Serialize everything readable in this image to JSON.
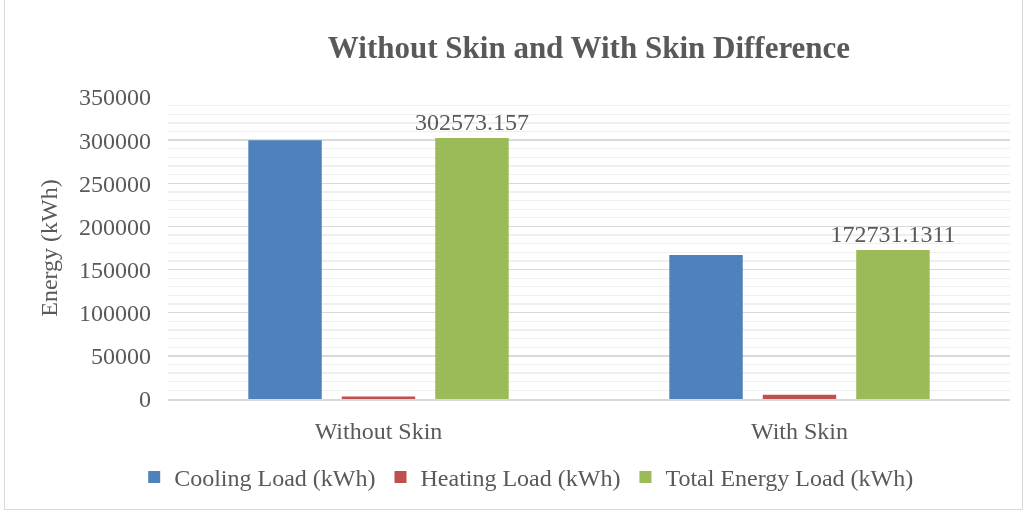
{
  "chart_data": {
    "type": "bar",
    "title": "Without Skin and With Skin Difference",
    "ylabel": "Energy (kWh)",
    "categories": [
      "Without Skin",
      "With Skin"
    ],
    "series": [
      {
        "name": "Cooling Load (kWh)",
        "color": "#4f81bd",
        "values": [
          300000,
          167000
        ]
      },
      {
        "name": "Heating Load (kWh)",
        "color": "#c0504d",
        "values": [
          3000,
          5000
        ]
      },
      {
        "name": "Total Energy Load (kWh)",
        "color": "#9bbb59",
        "values": [
          302573.157,
          172731.1311
        ],
        "value_labels": [
          "302573.157",
          "172731.1311"
        ]
      }
    ],
    "ylim": [
      0,
      350000
    ],
    "yticks": [
      0,
      {
        "value": 10000,
        "label": null
      },
      {
        "value": 20000,
        "label": null
      },
      {
        "value": 30000,
        "label": null
      },
      {
        "value": 40000,
        "label": null
      },
      50000,
      {
        "value": 60000,
        "label": null
      },
      {
        "value": 70000,
        "label": null
      },
      {
        "value": 80000,
        "label": null
      },
      {
        "value": 90000,
        "label": null
      },
      100000,
      {
        "value": 110000,
        "label": null
      },
      {
        "value": 120000,
        "label": null
      },
      {
        "value": 130000,
        "label": null
      },
      {
        "value": 140000,
        "label": null
      },
      150000,
      {
        "value": 160000,
        "label": null
      },
      {
        "value": 170000,
        "label": null
      },
      {
        "value": 180000,
        "label": null
      },
      {
        "value": 190000,
        "label": null
      },
      200000,
      {
        "value": 210000,
        "label": null
      },
      {
        "value": 220000,
        "label": null
      },
      {
        "value": 230000,
        "label": null
      },
      {
        "value": 240000,
        "label": null
      },
      250000,
      {
        "value": 260000,
        "label": null
      },
      {
        "value": 270000,
        "label": null
      },
      {
        "value": 280000,
        "label": null
      },
      {
        "value": 290000,
        "label": null
      },
      300000,
      {
        "value": 310000,
        "label": null
      },
      {
        "value": 320000,
        "label": null
      },
      {
        "value": 330000,
        "label": null
      },
      {
        "value": 340000,
        "label": null
      },
      350000
    ],
    "grid": "y",
    "legend": "bottom"
  }
}
